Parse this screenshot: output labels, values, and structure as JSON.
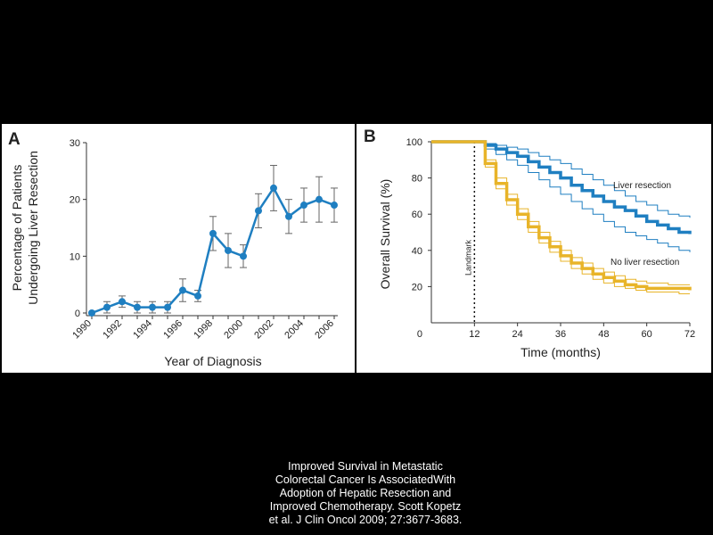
{
  "colors": {
    "background": "#000000",
    "panel": "#ffffff",
    "blue": "#1f7fc1",
    "gold": "#e8b429"
  },
  "panel_a": {
    "letter": "A"
  },
  "panel_b": {
    "letter": "B"
  },
  "chart_data": [
    {
      "type": "line",
      "panel": "A",
      "xlabel": "Year of Diagnosis",
      "ylabel": [
        "Percentage of Patients",
        "Undergoing Liver Resection"
      ],
      "xlim": [
        1990,
        2006
      ],
      "ylim": [
        0,
        30
      ],
      "xticks": [
        "1990",
        "1992",
        "1994",
        "1996",
        "1998",
        "2000",
        "2002",
        "2004",
        "2006"
      ],
      "yticks": [
        "0",
        "10",
        "20",
        "30"
      ],
      "series": [
        {
          "x": [
            1990,
            1991,
            1992,
            1993,
            1994,
            1995,
            1996,
            1997,
            1998,
            1999,
            2000,
            2001,
            2002,
            2003,
            2004,
            2005,
            2006
          ],
          "values": [
            0,
            1,
            2,
            1,
            1,
            1,
            4,
            3,
            14,
            11,
            10,
            18,
            22,
            17,
            19,
            20,
            19
          ],
          "error_low": [
            0,
            0,
            1,
            0,
            0,
            0,
            2,
            2,
            11,
            8,
            8,
            15,
            18,
            14,
            16,
            16,
            16
          ],
          "error_high": [
            0,
            2,
            3,
            2,
            2,
            2,
            6,
            4,
            17,
            14,
            12,
            21,
            26,
            20,
            22,
            24,
            22
          ]
        }
      ]
    },
    {
      "type": "line",
      "panel": "B",
      "xlabel": "Time (months)",
      "ylabel": "Overall Survival (%)",
      "xlim": [
        0,
        72
      ],
      "ylim": [
        0,
        100
      ],
      "xticks": [
        "0",
        "12",
        "24",
        "36",
        "48",
        "60",
        "72"
      ],
      "yticks": [
        "20",
        "40",
        "60",
        "80",
        "100"
      ],
      "landmark": {
        "x": 12,
        "label": "Landmark"
      },
      "series": [
        {
          "name": "Liver resection",
          "x": [
            0,
            12,
            15,
            18,
            21,
            24,
            27,
            30,
            33,
            36,
            39,
            42,
            45,
            48,
            51,
            54,
            57,
            60,
            63,
            66,
            69,
            72
          ],
          "values": [
            100,
            100,
            98,
            96,
            94,
            92,
            89,
            86,
            83,
            80,
            76,
            73,
            70,
            67,
            64,
            62,
            59,
            56,
            54,
            52,
            50,
            49
          ],
          "lower": [
            100,
            100,
            96,
            93,
            90,
            87,
            83,
            79,
            75,
            71,
            67,
            63,
            60,
            56,
            53,
            50,
            48,
            46,
            44,
            42,
            40,
            39
          ],
          "upper": [
            100,
            100,
            99,
            98,
            97,
            96,
            94,
            92,
            90,
            88,
            85,
            82,
            79,
            76,
            73,
            70,
            67,
            65,
            62,
            60,
            59,
            58
          ]
        },
        {
          "name": "No liver resection",
          "x": [
            0,
            12,
            15,
            18,
            21,
            24,
            27,
            30,
            33,
            36,
            39,
            42,
            45,
            48,
            51,
            54,
            57,
            60,
            63,
            66,
            69,
            72
          ],
          "values": [
            100,
            100,
            88,
            77,
            68,
            60,
            53,
            47,
            42,
            37,
            33,
            30,
            27,
            25,
            23,
            21,
            20,
            19,
            19,
            19,
            19,
            18
          ],
          "lower": [
            100,
            100,
            86,
            74,
            65,
            57,
            50,
            44,
            39,
            34,
            30,
            27,
            24,
            22,
            20,
            19,
            18,
            17,
            17,
            17,
            16,
            16
          ],
          "upper": [
            100,
            100,
            90,
            80,
            71,
            63,
            56,
            50,
            45,
            40,
            36,
            33,
            30,
            28,
            26,
            24,
            23,
            22,
            22,
            21,
            21,
            21
          ]
        }
      ]
    }
  ],
  "caption": {
    "lines": [
      "Improved Survival in Metastatic",
      "Colorectal Cancer Is AssociatedWith",
      "Adoption of Hepatic Resection and",
      "Improved Chemotherapy. Scott Kopetz",
      "et al. J Clin Oncol 2009; 27:3677-3683."
    ]
  }
}
